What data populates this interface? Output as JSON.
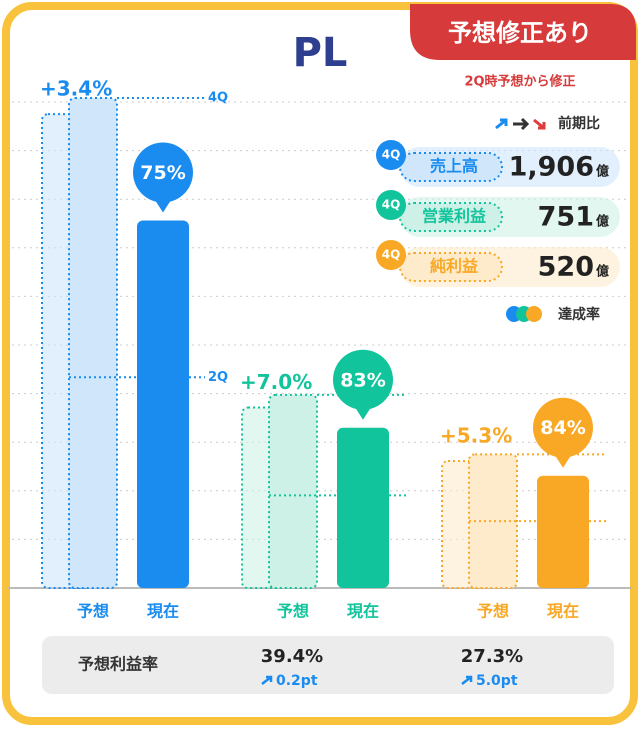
{
  "header": {
    "title": "PL",
    "badge": "予想修正あり",
    "badge_note": "2Q時予想から修正",
    "comparison_label": "前期比",
    "achievement_label": "達成率"
  },
  "chart_data": {
    "type": "bar",
    "bar_labels": [
      "予想",
      "現在"
    ],
    "markers": [
      "4Q",
      "2Q"
    ],
    "unit": "億",
    "groups": [
      {
        "name": "売上高",
        "period": "4Q",
        "color": "#1a8cf0",
        "light": "#cfe6fb",
        "forecast": 1906,
        "forecast_label": "1,906",
        "forecast_change": 3.4,
        "forecast_change_label": "+3.4%",
        "achievement": 75,
        "achievement_label": "75%",
        "q2_share": 43
      },
      {
        "name": "営業利益",
        "period": "4Q",
        "color": "#12c49b",
        "light": "#cdf1e6",
        "forecast": 751,
        "forecast_label": "751",
        "forecast_change": 7.0,
        "forecast_change_label": "+7.0%",
        "achievement": 83,
        "achievement_label": "83%",
        "q2_share": 48
      },
      {
        "name": "純利益",
        "period": "4Q",
        "color": "#f9a825",
        "light": "#fdebcc",
        "forecast": 520,
        "forecast_label": "520",
        "forecast_change": 5.3,
        "forecast_change_label": "+5.3%",
        "achievement": 84,
        "achievement_label": "84%",
        "q2_share": 50
      }
    ]
  },
  "margin_table": {
    "label": "予想利益率",
    "values": [
      {
        "value": "39.4%",
        "change": "0.2pt"
      },
      {
        "value": "27.3%",
        "change": "5.0pt"
      }
    ]
  }
}
